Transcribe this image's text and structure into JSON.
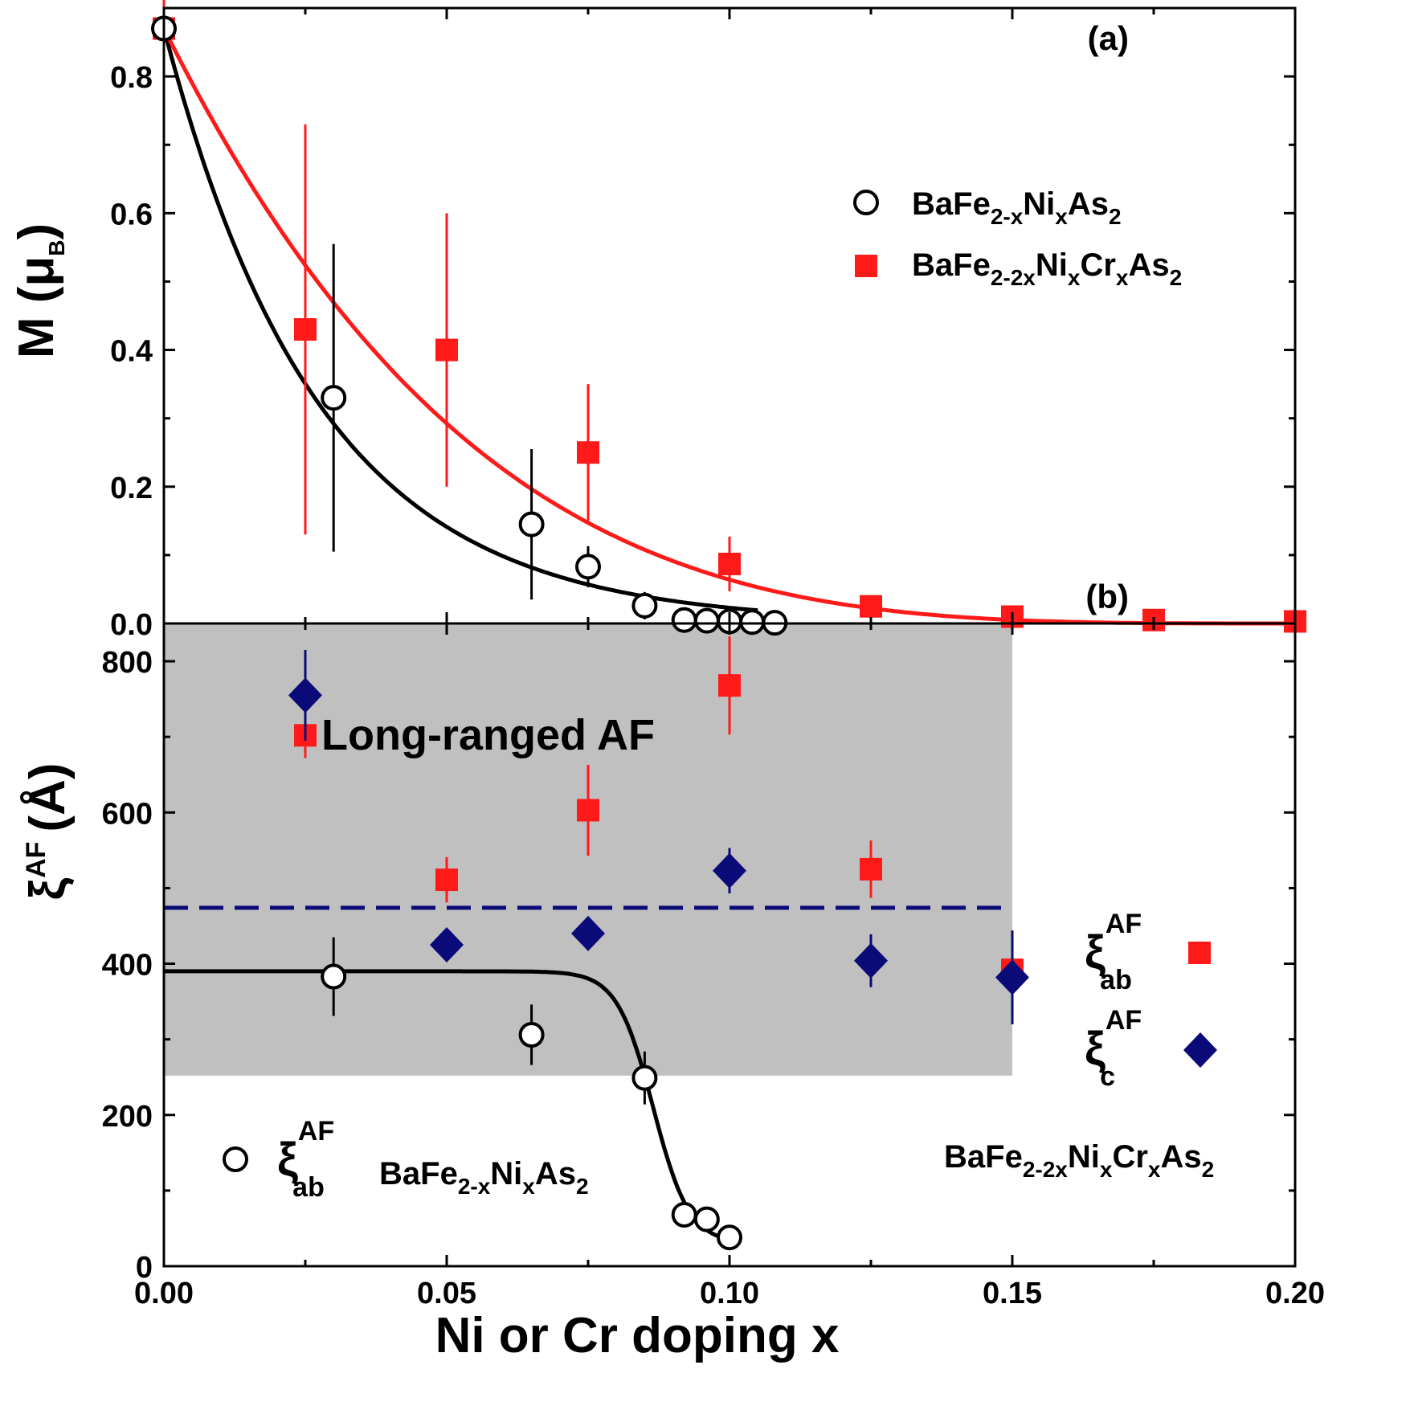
{
  "colors": {
    "black_series": "#000000",
    "red_series": "#ff1a1a",
    "blue_series": "#0a0a78",
    "shade": "#c0c0c0"
  },
  "chart_data": [
    {
      "type": "scatter",
      "panel_label": "(a)",
      "ylabel": "M (μB)",
      "ylabel_parts": {
        "main": "M (μ",
        "sub": "B",
        "close": ")"
      },
      "ylim": [
        0,
        0.9
      ],
      "xlim": [
        0,
        0.2
      ],
      "yticks": [
        "0.0",
        "0.2",
        "0.4",
        "0.6",
        "0.8"
      ],
      "series": [
        {
          "name": "BaFe2-xNixAs2",
          "legend_parts": {
            "a": "BaFe",
            "a_sub": "2-x",
            "b": "Ni",
            "b_sub": "x",
            "c": "As",
            "c_sub": "2"
          },
          "marker": "open-circle",
          "x": [
            0.0,
            0.03,
            0.065,
            0.075,
            0.085,
            0.092,
            0.096,
            0.1,
            0.104,
            0.108
          ],
          "y": [
            0.87,
            0.33,
            0.145,
            0.083,
            0.026,
            0.005,
            0.004,
            0.003,
            0.002,
            0.001
          ],
          "err": [
            0.0,
            0.225,
            0.11,
            0.03,
            0.02,
            0.012,
            0.012,
            0.012,
            0.01,
            0.01
          ],
          "fit": "exponential-decay"
        },
        {
          "name": "BaFe2-2xNixCrxAs2",
          "legend_parts": {
            "a": "BaFe",
            "a_sub": "2-2x",
            "b": "Ni",
            "b_sub": "x",
            "c": "Cr",
            "c_sub": "x",
            "d": "As",
            "d_sub": "2"
          },
          "marker": "filled-square",
          "x": [
            0.0,
            0.025,
            0.05,
            0.075,
            0.1,
            0.125,
            0.15,
            0.175,
            0.2
          ],
          "y": [
            0.87,
            0.43,
            0.4,
            0.25,
            0.087,
            0.025,
            0.01,
            0.005,
            0.003
          ],
          "err": [
            0.17,
            0.3,
            0.2,
            0.1,
            0.04,
            0.0,
            0.0,
            0.0,
            0.0
          ],
          "fit": "smooth-decay"
        }
      ]
    },
    {
      "type": "scatter",
      "panel_label": "(b)",
      "ylabel": "ξAF (Å)",
      "ylim": [
        0,
        850
      ],
      "xlim": [
        0,
        0.2
      ],
      "yticks": [
        "0",
        "200",
        "400",
        "600",
        "800"
      ],
      "xticks": [
        "0.00",
        "0.05",
        "0.10",
        "0.15",
        "0.20"
      ],
      "xlabel": "Ni or Cr doping x",
      "shaded_region": {
        "x": [
          0,
          0.15
        ],
        "y": [
          252,
          850
        ],
        "label": "Long-ranged AF"
      },
      "dashed_line": {
        "y": 474,
        "x": [
          0,
          0.15
        ]
      },
      "series": [
        {
          "name": "ξab AF BaFe2-xNixAs2",
          "marker": "open-circle",
          "x": [
            0.03,
            0.065,
            0.085,
            0.092,
            0.096,
            0.1
          ],
          "y": [
            383,
            306,
            249,
            68,
            62,
            38
          ],
          "err": [
            52,
            40,
            35,
            8,
            8,
            8
          ],
          "fit": "sigmoid-drop"
        },
        {
          "name": "ξab AF BaFe2-2xNixCrxAs2",
          "marker": "filled-square",
          "x": [
            0.025,
            0.05,
            0.075,
            0.1,
            0.125,
            0.15
          ],
          "y": [
            702,
            511,
            603,
            768,
            525,
            392
          ],
          "err": [
            30,
            30,
            60,
            65,
            38,
            0
          ],
          "fit": "none"
        },
        {
          "name": "ξc AF BaFe2-2xNixCrxAs2",
          "marker": "filled-diamond",
          "x": [
            0.025,
            0.05,
            0.075,
            0.1,
            0.125,
            0.15
          ],
          "y": [
            755,
            425,
            440,
            523,
            404,
            382
          ],
          "err": [
            60,
            0,
            0,
            30,
            35,
            62
          ],
          "fit": "none"
        }
      ],
      "legend": {
        "xi_symbol": "ξ",
        "sup_af": "AF",
        "sub_ab": "ab",
        "sub_c": "c",
        "compound_ni": {
          "a": "BaFe",
          "a_sub": "2-x",
          "b": "Ni",
          "b_sub": "x",
          "c": "As",
          "c_sub": "2"
        },
        "compound_cr": {
          "a": "BaFe",
          "a_sub": "2-2x",
          "b": "Ni",
          "b_sub": "x",
          "c": "Cr",
          "c_sub": "x",
          "d": "As",
          "d_sub": "2"
        }
      },
      "ylabel_parts": {
        "xi": "ξ",
        "sup": "AF",
        "unit": "(Å)"
      }
    }
  ]
}
